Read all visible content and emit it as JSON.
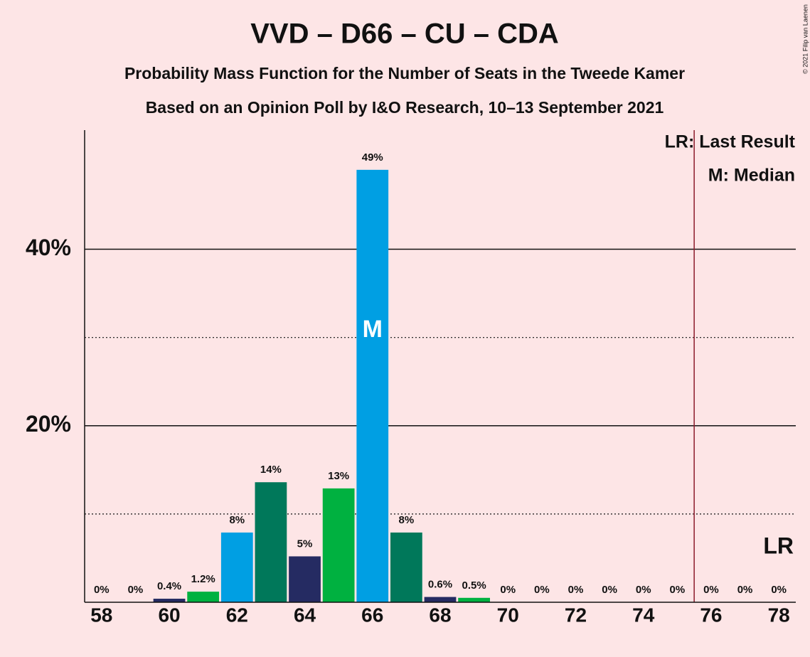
{
  "chart_data": {
    "type": "bar",
    "title": "VVD – D66 – CU – CDA",
    "subtitle": "Probability Mass Function for the Number of Seats in the Tweede Kamer",
    "subtitle2": "Based on an Opinion Poll by I&O Research, 10–13 September 2021",
    "copyright": "© 2021 Filip van Laenen",
    "x": [
      58,
      59,
      60,
      61,
      62,
      63,
      64,
      65,
      66,
      67,
      68,
      69,
      70,
      71,
      72,
      73,
      74,
      75,
      76,
      77,
      78
    ],
    "values": [
      0,
      0,
      0.4,
      1.2,
      7.9,
      13.6,
      5.2,
      12.9,
      49,
      7.9,
      0.6,
      0.5,
      0,
      0,
      0,
      0,
      0,
      0,
      0,
      0,
      0
    ],
    "value_labels": [
      "0%",
      "0%",
      "0.4%",
      "1.2%",
      "8%",
      "14%",
      "5%",
      "13%",
      "49%",
      "8%",
      "0.6%",
      "0.5%",
      "0%",
      "0%",
      "0%",
      "0%",
      "0%",
      "0%",
      "0%",
      "0%",
      "0%"
    ],
    "colors": [
      "#009fe3",
      "#00785a",
      "#252b62",
      "#00b140",
      "#009fe3",
      "#00785a",
      "#252b62",
      "#00b140",
      "#009fe3",
      "#00785a",
      "#252b62",
      "#00b140",
      "#009fe3",
      "#00785a",
      "#252b62",
      "#00b140",
      "#009fe3",
      "#00785a",
      "#252b62",
      "#00b140",
      "#009fe3"
    ],
    "xlim": [
      57.5,
      78.5
    ],
    "xticks": [
      58,
      60,
      62,
      64,
      66,
      68,
      70,
      72,
      74,
      76,
      78
    ],
    "ylim": [
      0,
      53.5
    ],
    "yticks": [
      {
        "value": 20,
        "label": "20%"
      },
      {
        "value": 40,
        "label": "40%"
      }
    ],
    "minor_yticks": [
      10,
      30
    ],
    "grid": true,
    "median": {
      "x": 66,
      "label": "M"
    },
    "last_result": {
      "x": 75.5,
      "label": "LR",
      "color": "#8b1a2b"
    },
    "legend": [
      "LR: Last Result",
      "M: Median"
    ]
  }
}
